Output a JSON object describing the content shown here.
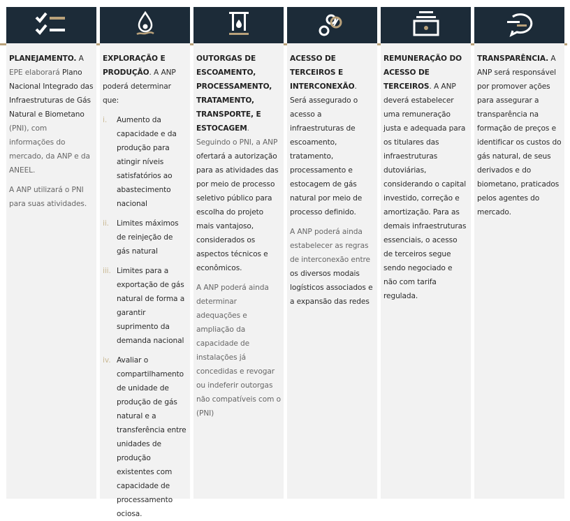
{
  "colors": {
    "header_bg": "#1c2b38",
    "accent_gold": "#b9a17a",
    "column_bg": "#f2f2f2"
  },
  "columns": [
    {
      "icon": "checklist-icon",
      "paras": [
        [
          {
            "t": "PLANEJAMENTO.",
            "s": "b"
          },
          {
            "t": " A "
          },
          {
            "t": "EPE elaborará",
            "s": "g"
          },
          {
            "t": " Plano Nacional Integrado das Infraestruturas de Gás Natural e Biometano "
          },
          {
            "t": "(PNI), com informações do mercado, da ANP e da ANEEL.",
            "s": "g"
          }
        ],
        [
          {
            "t": "A ANP utilizará o PNI para suas atividades.",
            "s": "g"
          }
        ]
      ]
    },
    {
      "icon": "oil-drop-flame-icon",
      "paras": [
        [
          {
            "t": "EXPLORAÇÃO E PRODUÇÃO",
            "s": "b"
          },
          {
            "t": ". A ANP poderá determinar que:"
          }
        ]
      ],
      "items": [
        {
          "n": "i.",
          "t": "Aumento da capacidade e da produção para atingir níveis satisfatórios  ao abastecimento nacional"
        },
        {
          "n": "ii.",
          "t": "Limites máximos de reinjeção de gás natural"
        },
        {
          "n": "iii.",
          "t": "Limites para a exportação de gás natural de forma a garantir suprimento da demanda nacional"
        },
        {
          "n": "iv.",
          "t": "Avaliar  o compartilhamento de unidade de produção de gás natural e a transferência entre unidades de produção existentes com capacidade de processamento ociosa."
        }
      ]
    },
    {
      "icon": "storage-tank-icon",
      "paras": [
        [
          {
            "t": "OUTORGAS  DE ESCOAMENTO, PROCESSAMENTO, TRATAMENTO, TRANSPORTE,  E ESTOCAGEM",
            "s": "b"
          },
          {
            "t": ". Seguindo o PNI, a ANP ",
            "s": "g"
          },
          {
            "t": "ofertará a  autorização para as atividades das por meio de processo seletivo público para escolha do projeto mais vantajoso, considerados os aspectos técnicos e econômicos."
          }
        ],
        [
          {
            "t": "A ANP poderá ainda determinar adequações e ampliação da capacidade de instalações já concedidas e revogar ou indeferir outorgas não compatíveis com o (PNI)",
            "s": "g"
          }
        ]
      ]
    },
    {
      "icon": "interconnection-rings-icon",
      "paras": [
        [
          {
            "t": "ACESSO DE TERCEIROS E INTERCONEXÃO",
            "s": "b"
          },
          {
            "t": ".  Será assegurado o acesso a infraestruturas de escoamento, tratamento, processamento e estocagem de gás natural por meio de processo definido."
          }
        ],
        [
          {
            "t": "A ANP poderá ainda estabelecer as regras de interconexão entre",
            "s": "g"
          },
          {
            "t": " os diversos modais logísticos associados e a expansão das redes"
          }
        ]
      ]
    },
    {
      "icon": "cash-register-icon",
      "paras": [
        [
          {
            "t": "REMUNERAÇÃO  DO ACESSO DE TERCEIROS",
            "s": "b"
          },
          {
            "t": ". A ANP deverá estabelecer uma remuneração justa e adequada para os titulares das infraestruturas dutoviárias, considerando o capital investido, correção e amortização. Para as demais infraestruturas essenciais, o acesso de terceiros segue sendo negociado e não com tarifa regulada."
          }
        ]
      ]
    },
    {
      "icon": "speech-bubble-icon",
      "paras": [
        [
          {
            "t": "TRANSPARÊNCIA.",
            "s": "b"
          },
          {
            "t": "  A ANP será responsável por promover ações para assegurar a transparência na formação de preços e identificar os custos do gás natural, de seus derivados e do biometano, praticados pelos agentes do mercado."
          }
        ]
      ]
    }
  ]
}
